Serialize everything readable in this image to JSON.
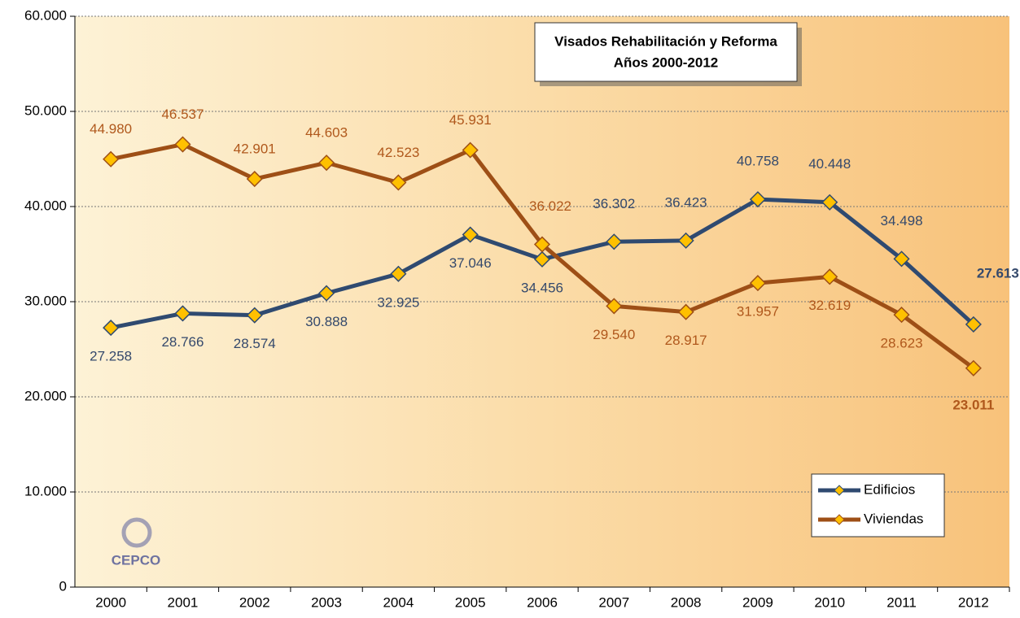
{
  "chart_data": {
    "type": "line",
    "title": "Visados Rehabilitación y Reforma",
    "subtitle": "Años 2000-2012",
    "logo": "CEPCO",
    "categories": [
      "2000",
      "2001",
      "2002",
      "2003",
      "2004",
      "2005",
      "2006",
      "2007",
      "2008",
      "2009",
      "2010",
      "2011",
      "2012"
    ],
    "series": [
      {
        "name": "Edificios",
        "color": "#2f4a70",
        "label_color": "#34496c",
        "values": [
          27258,
          28766,
          28574,
          30888,
          32925,
          37046,
          34456,
          36302,
          36423,
          40758,
          40448,
          34498,
          27613
        ],
        "value_labels": [
          "27.258",
          "28.766",
          "28.574",
          "30.888",
          "32.925",
          "37.046",
          "34.456",
          "36.302",
          "36.423",
          "40.758",
          "40.448",
          "34.498",
          "27.613"
        ]
      },
      {
        "name": "Viviendas",
        "color": "#9e4f16",
        "label_color": "#b0581c",
        "values": [
          44980,
          46537,
          42901,
          44603,
          42523,
          45931,
          36022,
          29540,
          28917,
          31957,
          32619,
          28623,
          23011
        ],
        "value_labels": [
          "44.980",
          "46.537",
          "42.901",
          "44.603",
          "42.523",
          "45.931",
          "36.022",
          "29.540",
          "28.917",
          "31.957",
          "32.619",
          "28.623",
          "23.011"
        ]
      }
    ],
    "marker_color": "#ffc000",
    "ylim": [
      0,
      60000
    ],
    "yticks": [
      0,
      {
        "value": 10000,
        "label": "10.000"
      },
      {
        "value": 20000,
        "label": "20.000"
      },
      {
        "value": 30000,
        "label": "30.000"
      },
      {
        "value": 40000,
        "label": "40.000"
      },
      {
        "value": 50000,
        "label": "50.000"
      },
      {
        "value": 60000,
        "label": "60.000"
      }
    ],
    "grid": true,
    "legend": "lower right"
  }
}
